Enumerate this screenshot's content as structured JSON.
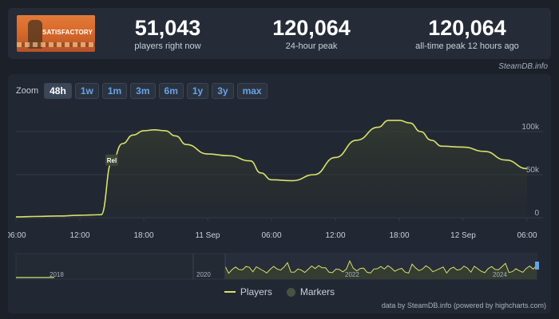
{
  "game": {
    "logo_text": "SATISFACTORY"
  },
  "stats": [
    {
      "value": "51,043",
      "label": "players right now"
    },
    {
      "value": "120,064",
      "label": "24-hour peak"
    },
    {
      "value": "120,064",
      "label": "all-time peak 12 hours ago"
    }
  ],
  "credit": "SteamDB.info",
  "zoom": {
    "label": "Zoom",
    "options": [
      "48h",
      "1w",
      "1m",
      "3m",
      "6m",
      "1y",
      "3y",
      "max"
    ],
    "selected": "48h"
  },
  "chart_data": {
    "type": "area",
    "series": [
      {
        "name": "Players",
        "color": "#d7e26b",
        "x": [
          "06:00",
          "08:00",
          "10:00",
          "12:00",
          "13:00",
          "14:00",
          "15:00",
          "16:00",
          "17:00",
          "18:00",
          "19:00",
          "20:00",
          "21:00",
          "22:00",
          "00:00",
          "02:00",
          "04:00",
          "05:00",
          "06:00",
          "08:00",
          "10:00",
          "12:00",
          "14:00",
          "16:00",
          "17:00",
          "18:00",
          "19:00",
          "20:00",
          "21:00",
          "22:00",
          "00:00",
          "02:00",
          "04:00",
          "06:00"
        ],
        "y": [
          1000,
          1500,
          2000,
          2800,
          3200,
          3500,
          65000,
          86000,
          96000,
          101000,
          102000,
          101000,
          95000,
          85000,
          74000,
          72000,
          66000,
          52000,
          44000,
          43000,
          50000,
          70000,
          90000,
          105000,
          113000,
          113000,
          110000,
          100000,
          90000,
          83000,
          82000,
          77000,
          67000,
          57000
        ]
      }
    ],
    "x_tick_labels": [
      "06:00",
      "12:00",
      "18:00",
      "11 Sep",
      "06:00",
      "12:00",
      "18:00",
      "12 Sep",
      "06:00"
    ],
    "y_tick_labels": [
      "100k",
      "50k",
      "0"
    ],
    "ylim": [
      0,
      125000
    ],
    "annotations": [
      {
        "label": "Rel",
        "x": "15:00"
      }
    ],
    "navigator_labels": [
      "2018",
      "2020",
      "2022",
      "2024"
    ],
    "legend": [
      {
        "name": "Players"
      },
      {
        "name": "Markers"
      }
    ],
    "grid": true
  },
  "footer": "data by SteamDB.info (powered by highcharts.com)"
}
